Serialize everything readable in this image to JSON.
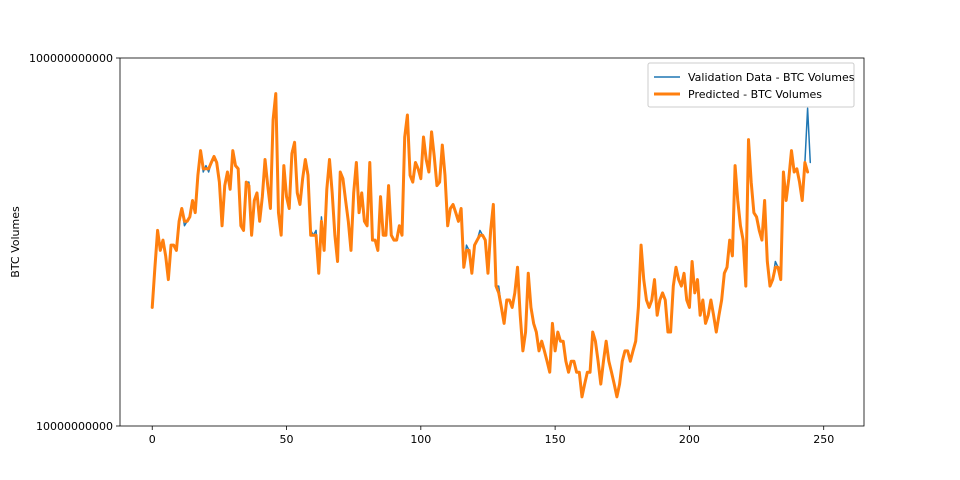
{
  "chart_data": {
    "type": "line",
    "title": "",
    "xlabel": "",
    "ylabel": "BTC Volumes",
    "yscale": "log",
    "xlim": [
      -12,
      265
    ],
    "ylim": [
      10000000000,
      100000000000
    ],
    "x_ticks": [
      0,
      50,
      100,
      150,
      200,
      250
    ],
    "x_tick_labels": [
      "0",
      "50",
      "100",
      "150",
      "200",
      "250"
    ],
    "y_ticks": [
      10000000000,
      100000000000
    ],
    "y_tick_labels": [
      "10000000000",
      "100000000000"
    ],
    "grid": false,
    "legend_position": "upper right",
    "x_start": 0,
    "series": [
      {
        "name": "Validation Data - BTC Volumes",
        "color": "#1f77b4",
        "line_width": 1.5,
        "values": [
          21000000000.0,
          27000000000.0,
          33000000000.0,
          30000000000.0,
          32000000000.0,
          29000000000.0,
          25000000000.0,
          31000000000.0,
          31000000000.0,
          30000000000.0,
          36000000000.0,
          39000000000.0,
          35000000000.0,
          36000000000.0,
          37000000000.0,
          41000000000.0,
          39000000000.0,
          49000000000.0,
          55000000000.0,
          49000000000.0,
          51000000000.0,
          49000000000.0,
          52000000000.0,
          53000000000.0,
          52000000000.0,
          46000000000.0,
          36000000000.0,
          45000000000.0,
          49000000000.0,
          44000000000.0,
          56000000000.0,
          51000000000.0,
          50000000000.0,
          35000000000.0,
          34000000000.0,
          46000000000.0,
          46000000000.0,
          33000000000.0,
          41000000000.0,
          43000000000.0,
          36000000000.0,
          42000000000.0,
          53000000000.0,
          46000000000.0,
          39000000000.0,
          68000000000.0,
          77000000000.0,
          38000000000.0,
          33000000000.0,
          51000000000.0,
          42000000000.0,
          39000000000.0,
          56000000000.0,
          58000000000.0,
          43000000000.0,
          40000000000.0,
          46000000000.0,
          53000000000.0,
          49000000000.0,
          34000000000.0,
          33000000000.0,
          34000000000.0,
          26000000000.0,
          37000000000.0,
          30000000000.0,
          44000000000.0,
          53000000000.0,
          43000000000.0,
          33000000000.0,
          28000000000.0,
          49000000000.0,
          47000000000.0,
          41000000000.0,
          36000000000.0,
          30000000000.0,
          43000000000.0,
          52000000000.0,
          38000000000.0,
          43000000000.0,
          36000000000.0,
          35000000000.0,
          52000000000.0,
          32000000000.0,
          32000000000.0,
          30000000000.0,
          42000000000.0,
          33000000000.0,
          33000000000.0,
          45000000000.0,
          33000000000.0,
          32000000000.0,
          32000000000.0,
          35000000000.0,
          33000000000.0,
          60000000000.0,
          70000000000.0,
          48000000000.0,
          46000000000.0,
          52000000000.0,
          50000000000.0,
          47000000000.0,
          61000000000.0,
          53000000000.0,
          49000000000.0,
          61000000000.0,
          54000000000.0,
          45000000000.0,
          46000000000.0,
          58000000000.0,
          48000000000.0,
          35000000000.0,
          39000000000.0,
          40000000000.0,
          38000000000.0,
          36000000000.0,
          39000000000.0,
          27000000000.0,
          31000000000.0,
          30000000000.0,
          26000000000.0,
          31000000000.0,
          32000000000.0,
          34000000000.0,
          33000000000.0,
          32000000000.0,
          26000000000.0,
          34000000000.0,
          40000000000.0,
          24000000000.0,
          24000000000.0,
          21000000000.0,
          19000000000.0,
          22000000000.0,
          22000000000.0,
          21000000000.0,
          23000000000.0,
          27000000000.0,
          20000000000.0,
          16000000000.0,
          18000000000.0,
          26000000000.0,
          21000000000.0,
          19000000000.0,
          18000000000.0,
          16000000000.0,
          17000000000.0,
          16000000000.0,
          15000000000.0,
          14000000000.0,
          19000000000.0,
          16000000000.0,
          18000000000.0,
          17000000000.0,
          17000000000.0,
          15000000000.0,
          14000000000.0,
          15000000000.0,
          15000000000.0,
          14000000000.0,
          14000000000.0,
          12000000000.0,
          13000000000.0,
          14000000000.0,
          14000000000.0,
          18000000000.0,
          17000000000.0,
          15000000000.0,
          13000000000.0,
          15000000000.0,
          17000000000.0,
          15000000000.0,
          14000000000.0,
          13000000000.0,
          12000000000.0,
          13000000000.0,
          15000000000.0,
          16000000000.0,
          16000000000.0,
          15000000000.0,
          16000000000.0,
          17000000000.0,
          21000000000.0,
          31000000000.0,
          25000000000.0,
          22000000000.0,
          21000000000.0,
          22000000000.0,
          25000000000.0,
          20000000000.0,
          22000000000.0,
          23000000000.0,
          22000000000.0,
          18000000000.0,
          18000000000.0,
          24000000000.0,
          27000000000.0,
          25000000000.0,
          24000000000.0,
          26000000000.0,
          22000000000.0,
          21000000000.0,
          28000000000.0,
          23000000000.0,
          25000000000.0,
          20000000000.0,
          22000000000.0,
          19000000000.0,
          20000000000.0,
          22000000000.0,
          20000000000.0,
          18000000000.0,
          20000000000.0,
          22000000000.0,
          26000000000.0,
          27000000000.0,
          32000000000.0,
          29000000000.0,
          51000000000.0,
          41000000000.0,
          35000000000.0,
          32000000000.0,
          24000000000.0,
          60000000000.0,
          46000000000.0,
          38000000000.0,
          37000000000.0,
          34000000000.0,
          32000000000.0,
          41000000000.0,
          28000000000.0,
          24000000000.0,
          25000000000.0,
          28000000000.0,
          27000000000.0,
          25000000000.0,
          49000000000.0,
          41000000000.0,
          47000000000.0,
          56000000000.0,
          49000000000.0,
          50000000000.0,
          46000000000.0,
          41000000000.0,
          52000000000.0,
          73000000000.0,
          52000000000.0
        ]
      },
      {
        "name": "Predicted  - BTC Volumes",
        "color": "#ff7f0e",
        "line_width": 3,
        "values": [
          21000000000.0,
          27000000000.0,
          34000000000.0,
          30000000000.0,
          32000000000.0,
          29000000000.0,
          25000000000.0,
          31000000000.0,
          31000000000.0,
          30000000000.0,
          36000000000.0,
          39000000000.0,
          36000000000.0,
          36000000000.0,
          37000000000.0,
          41000000000.0,
          38000000000.0,
          48000000000.0,
          56000000000.0,
          50000000000.0,
          50000000000.0,
          50000000000.0,
          52000000000.0,
          54000000000.0,
          52000000000.0,
          46000000000.0,
          35000000000.0,
          45000000000.0,
          49000000000.0,
          44000000000.0,
          56000000000.0,
          51000000000.0,
          50000000000.0,
          35000000000.0,
          34000000000.0,
          46000000000.0,
          45000000000.0,
          33000000000.0,
          41000000000.0,
          43000000000.0,
          36000000000.0,
          42000000000.0,
          53000000000.0,
          45000000000.0,
          39000000000.0,
          68000000000.0,
          80000000000.0,
          38000000000.0,
          33000000000.0,
          51000000000.0,
          42000000000.0,
          39000000000.0,
          55000000000.0,
          59000000000.0,
          43000000000.0,
          40000000000.0,
          47000000000.0,
          53000000000.0,
          48000000000.0,
          33000000000.0,
          33000000000.0,
          33000000000.0,
          26000000000.0,
          36000000000.0,
          30000000000.0,
          44000000000.0,
          53000000000.0,
          43000000000.0,
          33000000000.0,
          28000000000.0,
          49000000000.0,
          47000000000.0,
          41000000000.0,
          36000000000.0,
          30000000000.0,
          43000000000.0,
          52000000000.0,
          38000000000.0,
          43000000000.0,
          36000000000.0,
          35000000000.0,
          52000000000.0,
          32000000000.0,
          32000000000.0,
          30000000000.0,
          42000000000.0,
          33000000000.0,
          33000000000.0,
          45000000000.0,
          33000000000.0,
          32000000000.0,
          32000000000.0,
          35000000000.0,
          33000000000.0,
          61000000000.0,
          70000000000.0,
          48000000000.0,
          46000000000.0,
          52000000000.0,
          50000000000.0,
          47000000000.0,
          61000000000.0,
          53000000000.0,
          49000000000.0,
          63000000000.0,
          54000000000.0,
          45000000000.0,
          46000000000.0,
          58000000000.0,
          48000000000.0,
          35000000000.0,
          39000000000.0,
          40000000000.0,
          38000000000.0,
          36000000000.0,
          39000000000.0,
          27000000000.0,
          30000000000.0,
          30000000000.0,
          26000000000.0,
          31000000000.0,
          32000000000.0,
          33000000000.0,
          33000000000.0,
          32000000000.0,
          26000000000.0,
          34000000000.0,
          40000000000.0,
          24000000000.0,
          23000000000.0,
          21000000000.0,
          19000000000.0,
          22000000000.0,
          22000000000.0,
          21000000000.0,
          23000000000.0,
          27000000000.0,
          20000000000.0,
          16000000000.0,
          18000000000.0,
          26000000000.0,
          21000000000.0,
          19000000000.0,
          18000000000.0,
          16000000000.0,
          17000000000.0,
          16000000000.0,
          15000000000.0,
          14000000000.0,
          19000000000.0,
          16000000000.0,
          18000000000.0,
          17000000000.0,
          17000000000.0,
          15000000000.0,
          14000000000.0,
          15000000000.0,
          15000000000.0,
          14000000000.0,
          14000000000.0,
          12000000000.0,
          13000000000.0,
          14000000000.0,
          14000000000.0,
          18000000000.0,
          17000000000.0,
          15000000000.0,
          13000000000.0,
          15000000000.0,
          17000000000.0,
          15000000000.0,
          14000000000.0,
          13000000000.0,
          12000000000.0,
          13000000000.0,
          15000000000.0,
          16000000000.0,
          16000000000.0,
          15000000000.0,
          16000000000.0,
          17000000000.0,
          21000000000.0,
          31000000000.0,
          25000000000.0,
          22000000000.0,
          21000000000.0,
          22000000000.0,
          25000000000.0,
          20000000000.0,
          22000000000.0,
          23000000000.0,
          22000000000.0,
          18000000000.0,
          18000000000.0,
          24000000000.0,
          27000000000.0,
          25000000000.0,
          24000000000.0,
          26000000000.0,
          22000000000.0,
          21000000000.0,
          28000000000.0,
          23000000000.0,
          25000000000.0,
          20000000000.0,
          22000000000.0,
          19000000000.0,
          20000000000.0,
          22000000000.0,
          20000000000.0,
          18000000000.0,
          20000000000.0,
          22000000000.0,
          26000000000.0,
          27000000000.0,
          32000000000.0,
          29000000000.0,
          51000000000.0,
          41000000000.0,
          35000000000.0,
          32000000000.0,
          24000000000.0,
          60000000000.0,
          46000000000.0,
          38000000000.0,
          37000000000.0,
          34000000000.0,
          32000000000.0,
          41000000000.0,
          28000000000.0,
          24000000000.0,
          25000000000.0,
          27000000000.0,
          27000000000.0,
          25000000000.0,
          49000000000.0,
          41000000000.0,
          47000000000.0,
          56000000000.0,
          49000000000.0,
          50000000000.0,
          46000000000.0,
          41000000000.0,
          52000000000.0,
          49000000000.0
        ]
      }
    ]
  }
}
